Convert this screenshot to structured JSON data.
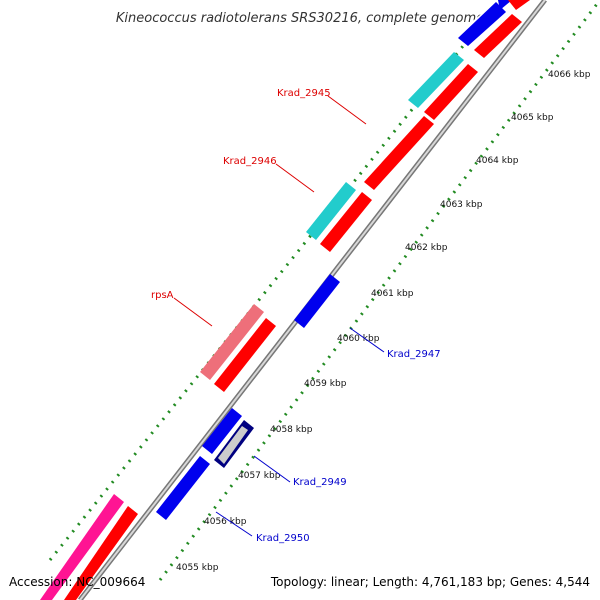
{
  "title": "Kineococcus radiotolerans SRS30216, complete genome",
  "footer": {
    "accession": "Accession: NC_009664",
    "summary": "Topology: linear; Length: 4,761,183 bp; Genes: 4,544"
  },
  "ticks": [
    "4055 kbp",
    "4056 kbp",
    "4057 kbp",
    "4058 kbp",
    "4059 kbp",
    "4060 kbp",
    "4061 kbp",
    "4062 kbp",
    "4063 kbp",
    "4064 kbp",
    "4065 kbp",
    "4066 kbp"
  ],
  "gene_labels": {
    "krad_2945": "Krad_2945",
    "krad_2946": "Krad_2946",
    "rpsa": "rpsA",
    "krad_2947": "Krad_2947",
    "krad_2949": "Krad_2949",
    "krad_2950": "Krad_2950"
  },
  "colors": {
    "forward_cds": "#ff0000",
    "reverse_cds": "#0000ee",
    "teal_feature": "#22cccc",
    "pink_feature": "#ee6f7a",
    "magenta_feature": "#ff1493",
    "navy_feature": "#000080",
    "backbone": "#888888",
    "tick_dots": "#228b22",
    "forward_label": "#dd0000",
    "reverse_label": "#0000cc"
  }
}
